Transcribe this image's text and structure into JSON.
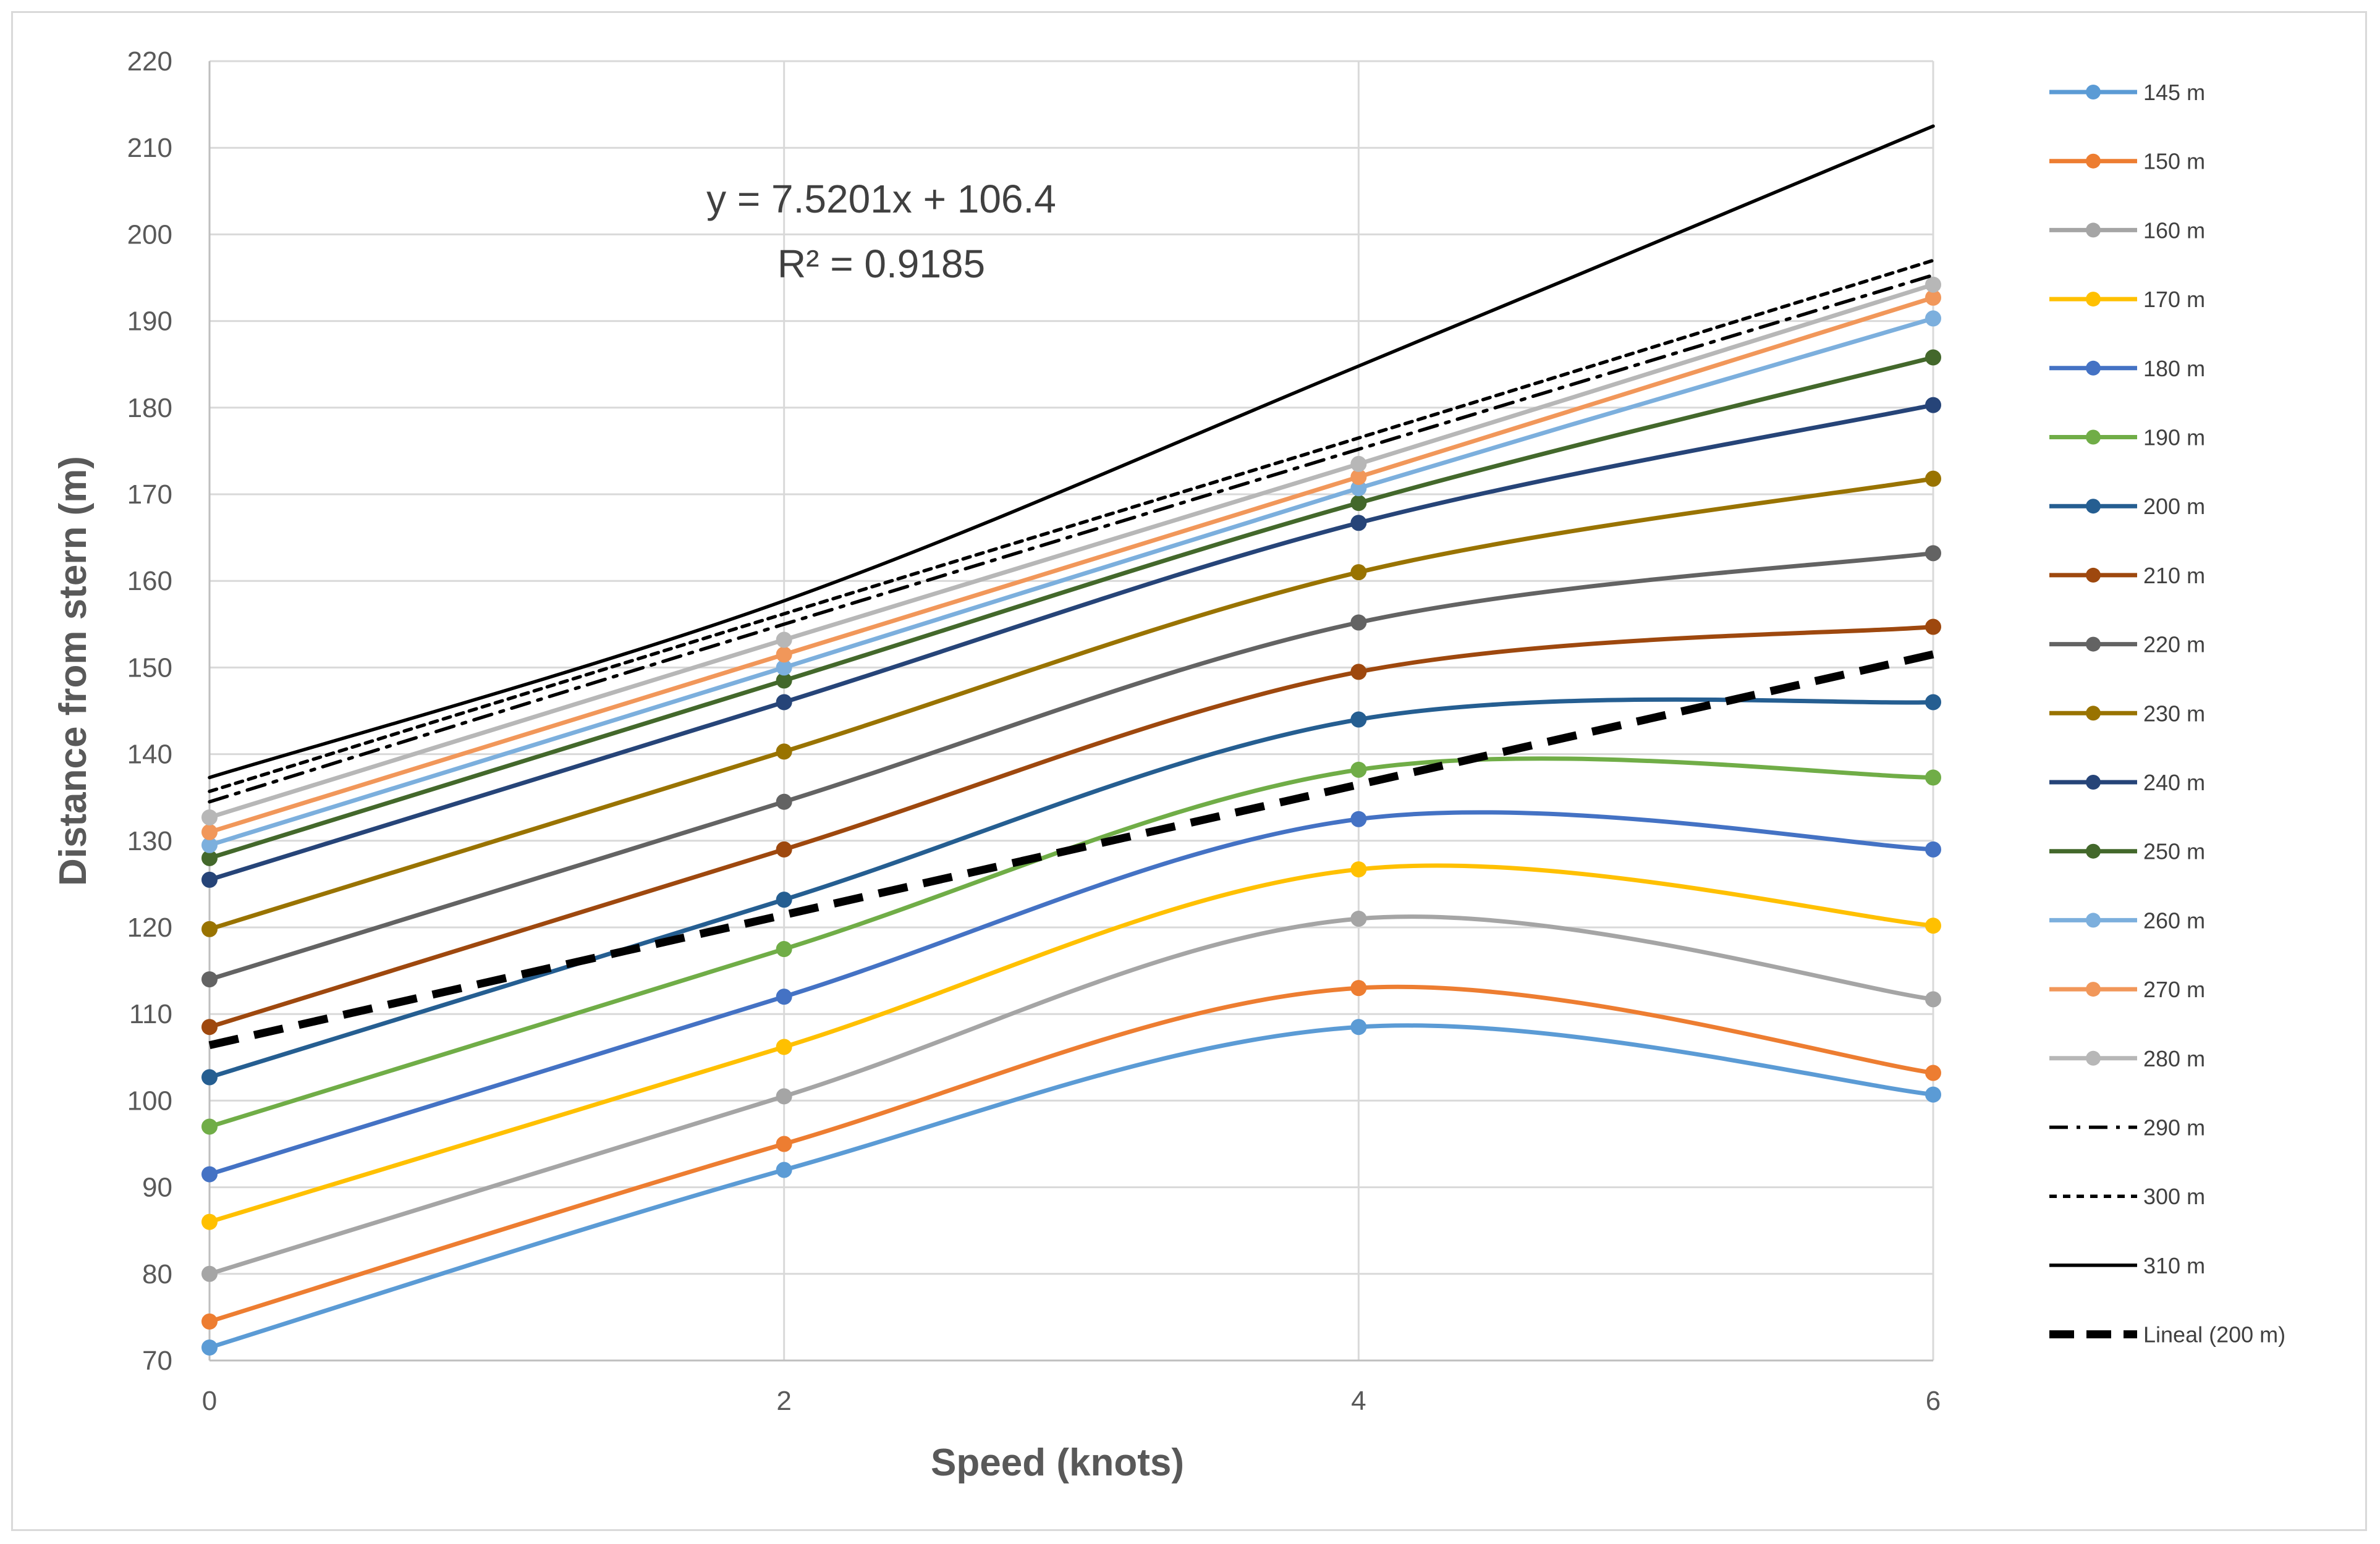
{
  "chart_data": {
    "type": "line",
    "title": "",
    "xlabel": "Speed (knots)",
    "ylabel": "Distance from stern (m)",
    "xlim": [
      0,
      6
    ],
    "ylim": [
      70,
      220
    ],
    "xticks": [
      "0",
      "2",
      "4",
      "6"
    ],
    "yticks": [
      "70",
      "80",
      "90",
      "100",
      "110",
      "120",
      "130",
      "140",
      "150",
      "160",
      "170",
      "180",
      "190",
      "200",
      "210",
      "220"
    ],
    "grid": true,
    "legend_position": "right",
    "x": [
      0,
      2,
      4,
      6
    ],
    "series": [
      {
        "name": "145 m",
        "values": [
          71.5,
          92.0,
          108.5,
          100.7
        ],
        "color": "#5b9bd5",
        "dash": "solid",
        "markers": true
      },
      {
        "name": "150 m",
        "values": [
          74.5,
          95.0,
          113.0,
          103.2
        ],
        "color": "#ed7d31",
        "dash": "solid",
        "markers": true
      },
      {
        "name": "160 m",
        "values": [
          80.0,
          100.5,
          121.0,
          111.7
        ],
        "color": "#a5a5a5",
        "dash": "solid",
        "markers": true
      },
      {
        "name": "170 m",
        "values": [
          86.0,
          106.2,
          126.7,
          120.2
        ],
        "color": "#ffc000",
        "dash": "solid",
        "markers": true
      },
      {
        "name": "180 m",
        "values": [
          91.5,
          112.0,
          132.5,
          129.0
        ],
        "color": "#4472c4",
        "dash": "solid",
        "markers": true
      },
      {
        "name": "190 m",
        "values": [
          97.0,
          117.5,
          138.2,
          137.3
        ],
        "color": "#70ad47",
        "dash": "solid",
        "markers": true
      },
      {
        "name": "200 m",
        "values": [
          102.7,
          123.2,
          144.0,
          146.0
        ],
        "color": "#255e91",
        "dash": "solid",
        "markers": true
      },
      {
        "name": "210 m",
        "values": [
          108.5,
          129.0,
          149.5,
          154.7
        ],
        "color": "#9e480e",
        "dash": "solid",
        "markers": true
      },
      {
        "name": "220 m",
        "values": [
          114.0,
          134.5,
          155.2,
          163.2
        ],
        "color": "#636363",
        "dash": "solid",
        "markers": true
      },
      {
        "name": "230 m",
        "values": [
          119.8,
          140.3,
          161.0,
          171.8
        ],
        "color": "#997300",
        "dash": "solid",
        "markers": true
      },
      {
        "name": "240 m",
        "values": [
          125.5,
          146.0,
          166.7,
          180.3
        ],
        "color": "#264478",
        "dash": "solid",
        "markers": true
      },
      {
        "name": "250 m",
        "values": [
          128.0,
          148.5,
          169.0,
          185.8
        ],
        "color": "#43682b",
        "dash": "solid",
        "markers": true
      },
      {
        "name": "260 m",
        "values": [
          129.5,
          150.0,
          170.7,
          190.3
        ],
        "color": "#7cafdd",
        "dash": "solid",
        "markers": true
      },
      {
        "name": "270 m",
        "values": [
          131.0,
          151.5,
          172.0,
          192.7
        ],
        "color": "#f1975a",
        "dash": "solid",
        "markers": true
      },
      {
        "name": "280 m",
        "values": [
          132.7,
          153.2,
          173.5,
          194.2
        ],
        "color": "#b7b7b7",
        "dash": "solid",
        "markers": true
      },
      {
        "name": "290 m",
        "values": [
          134.5,
          155.0,
          175.2,
          195.3
        ],
        "color": "#000000",
        "dash": "dashdot",
        "markers": false
      },
      {
        "name": "300 m",
        "values": [
          135.7,
          156.2,
          176.5,
          197.0
        ],
        "color": "#000000",
        "dash": "dot",
        "markers": false
      },
      {
        "name": "310 m",
        "values": [
          137.3,
          157.7,
          184.8,
          212.5
        ],
        "color": "#000000",
        "dash": "solid",
        "markers": false
      }
    ],
    "trendline": {
      "name": "Lineal (200 m)",
      "slope": 7.5201,
      "intercept": 106.4,
      "color": "#000000",
      "dash": "longdash"
    },
    "annotation": {
      "equation": "y = 7.5201x + 106.4",
      "r_squared": "R² = 0.9185"
    }
  }
}
